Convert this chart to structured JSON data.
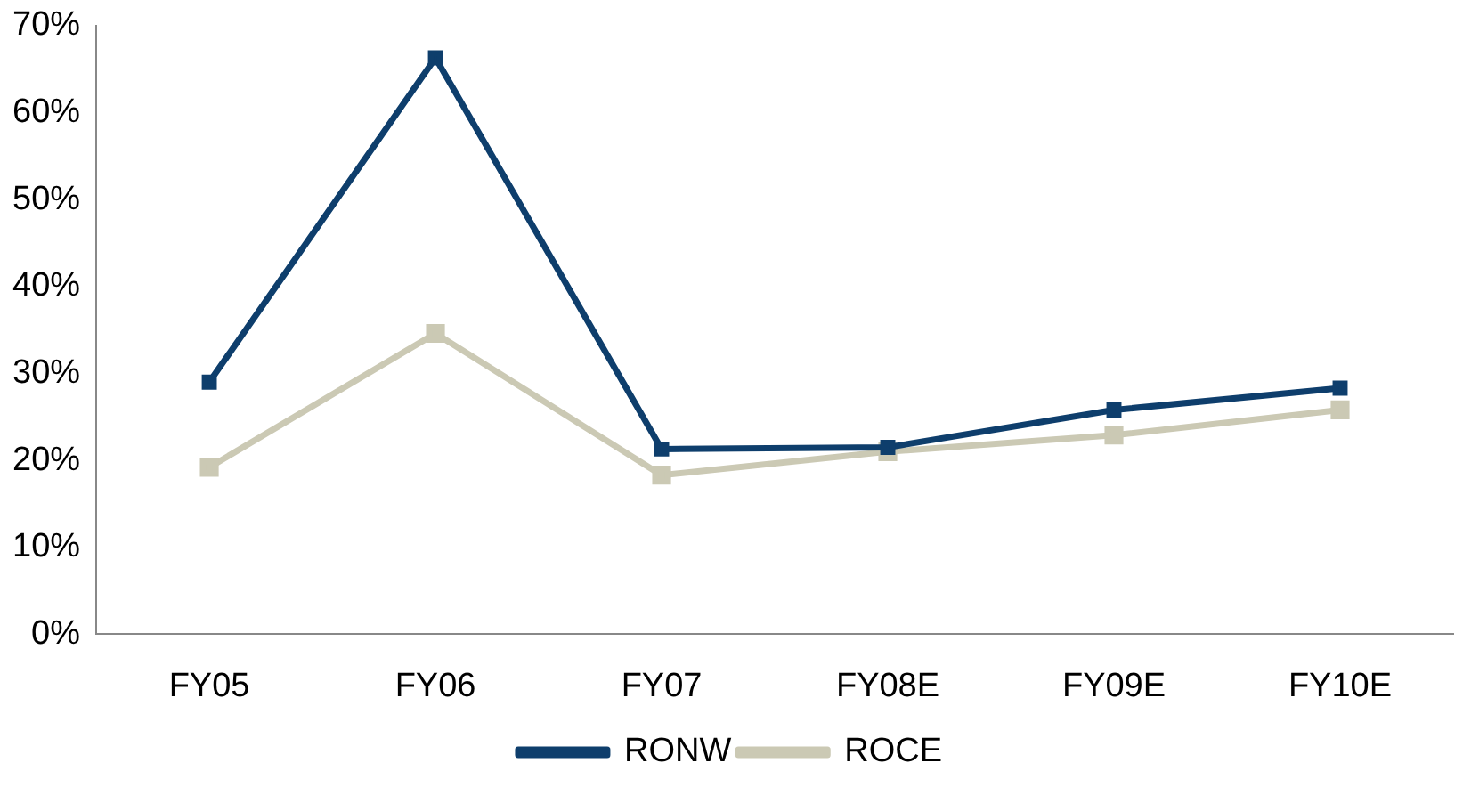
{
  "chart_data": {
    "type": "line",
    "categories": [
      "FY05",
      "FY06",
      "FY07",
      "FY08E",
      "FY09E",
      "FY10E"
    ],
    "series": [
      {
        "name": "ROCE",
        "color": "#cbc9b4",
        "values": [
          19.2,
          34.6,
          18.3,
          21.0,
          22.9,
          25.8
        ]
      },
      {
        "name": "RONW",
        "color": "#0e3e6c",
        "values": [
          29.0,
          66.3,
          21.3,
          21.5,
          25.8,
          28.3
        ]
      }
    ],
    "ylim": [
      0,
      70
    ],
    "yticks": [
      {
        "value": 0,
        "label": "0%"
      },
      {
        "value": 10,
        "label": "10%"
      },
      {
        "value": 20,
        "label": "20%"
      },
      {
        "value": 30,
        "label": "30%"
      },
      {
        "value": 40,
        "label": "40%"
      },
      {
        "value": 50,
        "label": "50%"
      },
      {
        "value": 60,
        "label": "60%"
      },
      {
        "value": 70,
        "label": "70%"
      }
    ],
    "grid": false,
    "legend": "bottom",
    "marker": "square",
    "line_style": "solid"
  }
}
